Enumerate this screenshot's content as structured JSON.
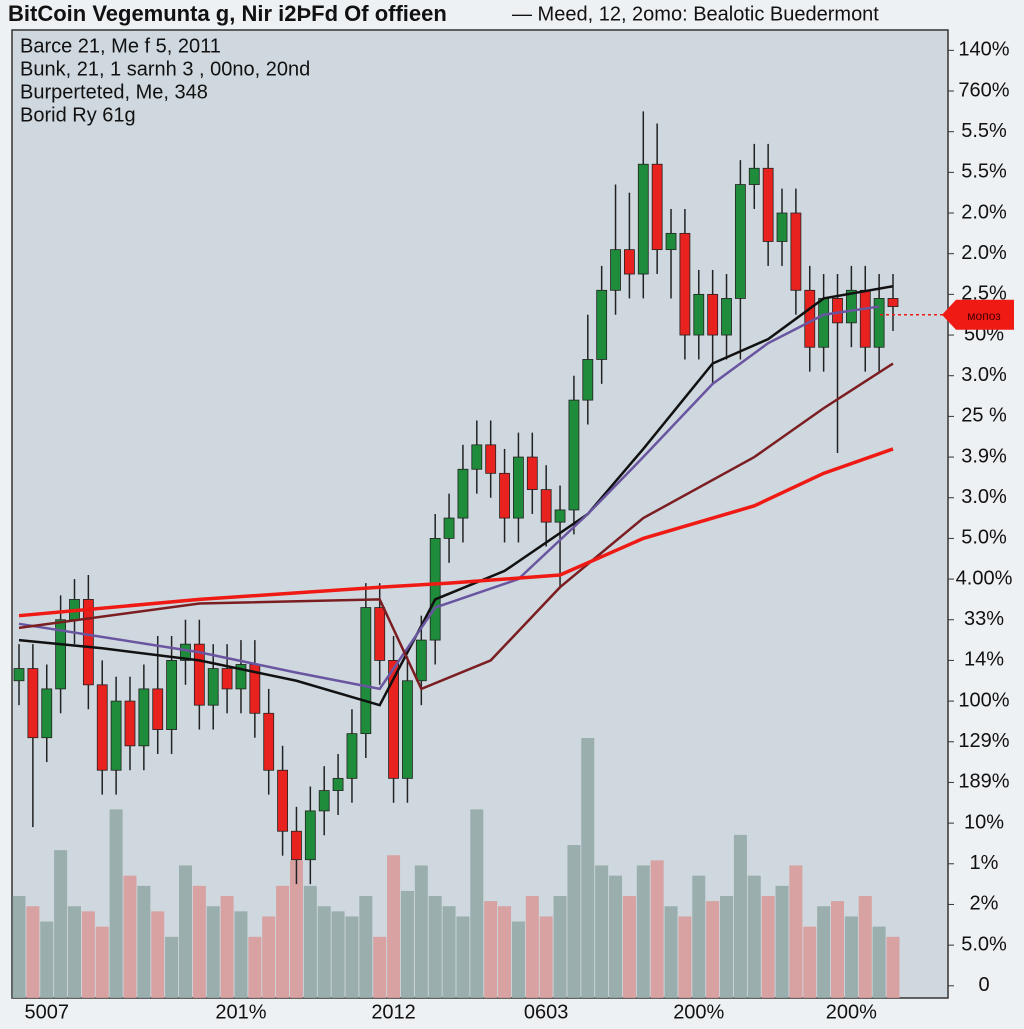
{
  "chart_data": {
    "type": "candlestick",
    "title": "BitCoin Vegemunta g, Nir i2ÞFd Of offieen",
    "subtitle": "— Meed, 12, 2omo: Bealotic Buedermont",
    "info": [
      "Barce 21, Me f 5, 2011",
      "Bunk, 21, 1 sarnh 3 , 00no, 20nd",
      "Burperteted, Me, 348",
      "Borid Ry 61g"
    ],
    "categories": [
      null,
      null,
      "5007",
      null,
      null,
      null,
      null,
      null,
      null,
      null,
      null,
      null,
      null,
      null,
      null,
      null,
      "201%",
      null,
      null,
      null,
      null,
      null,
      null,
      null,
      null,
      null,
      null,
      "2012",
      null,
      null,
      null,
      null,
      null,
      null,
      null,
      null,
      null,
      null,
      "0603",
      null,
      null,
      null,
      null,
      null,
      null,
      null,
      null,
      null,
      null,
      "200%",
      null,
      null,
      null,
      null,
      null,
      null,
      null,
      null,
      null,
      null,
      "200%",
      null,
      null,
      null
    ],
    "open": [
      7.5,
      7.8,
      6.1,
      7.3,
      9.0,
      9.5,
      7.4,
      5.3,
      7.0,
      5.9,
      7.3,
      6.3,
      8.0,
      8.4,
      6.9,
      7.8,
      7.3,
      7.9,
      6.7,
      5.3,
      3.8,
      3.1,
      4.3,
      4.8,
      5.1,
      6.2,
      9.3,
      8.0,
      5.1,
      7.5,
      8.5,
      11.0,
      11.5,
      12.7,
      13.3,
      12.6,
      11.5,
      13.0,
      12.2,
      11.4,
      11.7,
      14.4,
      15.4,
      17.1,
      18.1,
      17.5,
      20.2,
      18.1,
      18.5,
      16.0,
      17.0,
      16.0,
      16.9,
      19.7,
      20.1,
      18.3,
      19.0,
      17.1,
      15.7,
      16.9,
      16.3,
      17.1,
      15.7,
      16.9
    ],
    "close": [
      7.8,
      6.1,
      7.3,
      9.0,
      9.5,
      7.4,
      5.3,
      7.0,
      5.9,
      7.3,
      6.3,
      8.0,
      8.4,
      6.9,
      7.8,
      7.3,
      7.9,
      6.7,
      5.3,
      3.8,
      3.1,
      4.3,
      4.8,
      5.1,
      6.2,
      9.3,
      8.0,
      5.1,
      7.5,
      8.5,
      11.0,
      11.5,
      12.7,
      13.3,
      12.6,
      11.5,
      13.0,
      12.2,
      11.4,
      11.7,
      14.4,
      15.4,
      17.1,
      18.1,
      17.5,
      20.2,
      18.1,
      18.5,
      16.0,
      17.0,
      16.0,
      16.9,
      19.7,
      20.1,
      18.3,
      19.0,
      17.1,
      15.7,
      16.9,
      16.3,
      17.1,
      15.7,
      16.9,
      16.7
    ],
    "high": [
      8.4,
      8.4,
      7.9,
      9.6,
      10.0,
      10.1,
      8.0,
      7.6,
      7.6,
      7.9,
      8.6,
      8.6,
      9.0,
      9.0,
      8.4,
      8.4,
      8.5,
      8.5,
      7.3,
      5.9,
      4.4,
      4.9,
      5.4,
      5.7,
      6.8,
      9.9,
      9.9,
      8.6,
      8.1,
      9.1,
      11.6,
      12.1,
      13.3,
      13.9,
      13.9,
      13.2,
      13.6,
      13.6,
      12.8,
      12.3,
      15.0,
      16.5,
      17.7,
      19.7,
      19.5,
      21.5,
      21.2,
      19.1,
      19.1,
      17.6,
      17.6,
      17.5,
      20.3,
      20.7,
      20.7,
      19.6,
      19.6,
      17.7,
      17.5,
      17.5,
      17.7,
      17.7,
      17.5,
      17.5
    ],
    "low": [
      6.9,
      3.9,
      5.5,
      6.7,
      8.4,
      6.8,
      4.7,
      4.7,
      5.3,
      5.3,
      5.7,
      5.7,
      7.4,
      6.3,
      6.3,
      6.7,
      6.7,
      6.1,
      4.7,
      3.2,
      2.5,
      2.5,
      3.7,
      4.2,
      4.5,
      5.6,
      7.4,
      4.5,
      4.5,
      6.9,
      7.9,
      10.4,
      10.9,
      12.1,
      12.0,
      10.9,
      10.9,
      11.6,
      10.8,
      9.8,
      11.1,
      13.8,
      14.8,
      16.5,
      16.9,
      16.9,
      17.5,
      16.9,
      15.4,
      15.4,
      14.8,
      15.4,
      15.4,
      19.1,
      17.7,
      17.7,
      16.5,
      15.1,
      15.1,
      13.1,
      15.7,
      15.1,
      15.1,
      16.1
    ],
    "volume": [
      100,
      90,
      75,
      145,
      90,
      85,
      70,
      185,
      120,
      110,
      85,
      60,
      130,
      110,
      90,
      100,
      85,
      60,
      80,
      110,
      135,
      110,
      90,
      85,
      80,
      100,
      60,
      140,
      105,
      130,
      100,
      90,
      80,
      185,
      95,
      90,
      75,
      100,
      80,
      100,
      150,
      255,
      130,
      120,
      100,
      130,
      135,
      90,
      80,
      120,
      95,
      100,
      160,
      120,
      100,
      110,
      130,
      70,
      90,
      95,
      80,
      100,
      70,
      60
    ],
    "up_color": "#1e8c3a",
    "down_color": "#e8221e",
    "volume_up_color": "#93aaa8",
    "volume_down_color": "#d79c9a",
    "lines": [
      {
        "color": "#111111",
        "x": [
          0,
          6,
          13,
          20,
          26,
          30,
          35,
          41,
          45,
          50,
          54,
          58,
          63
        ],
        "values": [
          8.5,
          8.3,
          8.0,
          7.5,
          6.9,
          9.5,
          10.2,
          11.6,
          13.2,
          15.3,
          15.9,
          16.9,
          17.2
        ]
      },
      {
        "color": "#6a55a0",
        "x": [
          0,
          13,
          20,
          26,
          30,
          36,
          41,
          45,
          50,
          54,
          58,
          62
        ],
        "values": [
          8.9,
          8.2,
          7.7,
          7.3,
          9.3,
          10.0,
          11.6,
          13.0,
          14.8,
          15.8,
          16.5,
          16.7
        ]
      },
      {
        "color": "#7a1e22",
        "x": [
          0,
          13,
          26,
          29,
          34,
          39,
          45,
          53,
          58,
          63
        ],
        "values": [
          8.8,
          9.4,
          9.5,
          7.3,
          8.0,
          9.8,
          11.5,
          13.0,
          14.2,
          15.3
        ]
      },
      {
        "color": "#f01a14",
        "x": [
          0,
          13,
          26,
          31,
          39,
          45,
          53,
          58,
          63
        ],
        "values": [
          9.1,
          9.5,
          9.8,
          9.9,
          10.1,
          11.0,
          11.8,
          12.6,
          13.2
        ]
      }
    ],
    "price_tag": {
      "label": "мопоз",
      "value": 16.5,
      "color": "#f01a14"
    },
    "ylim": [
      -0.3,
      23.5
    ],
    "yticks": [
      0,
      {
        "value": 1,
        "label": "5.0%"
      },
      {
        "value": 2,
        "label": "2%"
      },
      {
        "value": 3,
        "label": "1%"
      },
      {
        "value": 4,
        "label": "10%"
      },
      {
        "value": 5,
        "label": "189%"
      },
      {
        "value": 6,
        "label": "129%"
      },
      {
        "value": 7,
        "label": "100%"
      },
      {
        "value": 8,
        "label": "14%"
      },
      {
        "value": 9,
        "label": "33%"
      },
      {
        "value": 10,
        "label": "4.00%"
      },
      {
        "value": 11,
        "label": "5.0%"
      },
      {
        "value": 12,
        "label": "3.0%"
      },
      {
        "value": 13,
        "label": "3.9%"
      },
      {
        "value": 14,
        "label": "25 %"
      },
      {
        "value": 15,
        "label": "3.0%"
      },
      {
        "value": 16,
        "label": "50%"
      },
      {
        "value": 17,
        "label": "2.5%"
      },
      {
        "value": 18,
        "label": "2.0%"
      },
      {
        "value": 19,
        "label": "2.0%"
      },
      {
        "value": 20,
        "label": "5.5%"
      },
      {
        "value": 21,
        "label": "5.5%"
      },
      {
        "value": 22,
        "label": "760%"
      },
      {
        "value": 23,
        "label": "140%"
      }
    ],
    "grid": false
  }
}
